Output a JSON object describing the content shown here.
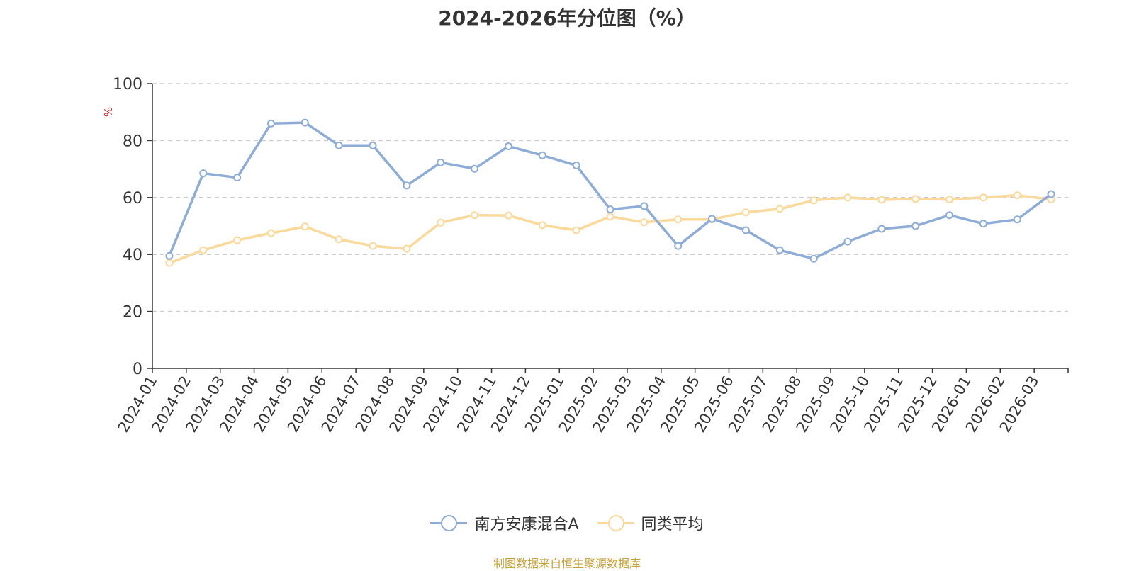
{
  "chart_data": {
    "type": "line",
    "title": "2024-2026年分位图（%）",
    "ylabel": "%",
    "ylim": [
      0,
      100
    ],
    "yticks": [
      0,
      20,
      40,
      60,
      80,
      100
    ],
    "grid": "horizontal dashed",
    "legend_position": "bottom-center",
    "categories": [
      "2024-01",
      "2024-02",
      "2024-03",
      "2024-04",
      "2024-05",
      "2024-06",
      "2024-07",
      "2024-08",
      "2024-09",
      "2024-10",
      "2024-11",
      "2024-12",
      "2025-01",
      "2025-02",
      "2025-03",
      "2025-04",
      "2025-05",
      "2025-06",
      "2025-07",
      "2025-08",
      "2025-09",
      "2025-10",
      "2025-11",
      "2025-12",
      "2026-01",
      "2026-02",
      "2026-03"
    ],
    "series": [
      {
        "name": "南方安康混合A",
        "color": "#8eacd8",
        "values": [
          39.5,
          68.5,
          67.0,
          86.0,
          86.3,
          78.3,
          78.3,
          64.2,
          72.3,
          70.1,
          78.0,
          74.8,
          71.3,
          55.8,
          57.0,
          43.0,
          52.5,
          48.5,
          41.5,
          38.5,
          44.5,
          49.0,
          50.0,
          53.8,
          50.8,
          52.3,
          61.2
        ]
      },
      {
        "name": "同类平均",
        "color": "#fad99a",
        "values": [
          37.0,
          41.5,
          45.0,
          47.5,
          49.8,
          45.3,
          43.0,
          42.0,
          51.2,
          53.8,
          53.7,
          50.3,
          48.5,
          53.3,
          51.3,
          52.3,
          52.3,
          54.8,
          56.0,
          59.0,
          60.0,
          59.2,
          59.5,
          59.3,
          60.0,
          60.8,
          59.3
        ]
      }
    ]
  },
  "footer": {
    "source": "制图数据来自恒生聚源数据库",
    "color": "#c8a03a"
  },
  "axis": {
    "ylabel_color": "#e02020"
  }
}
